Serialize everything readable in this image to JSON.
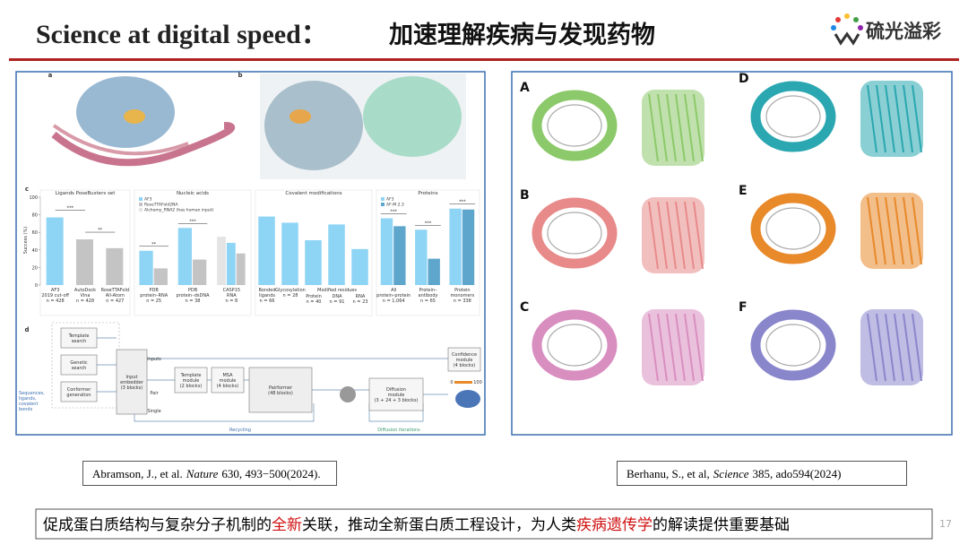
{
  "header": {
    "title_en": "Science at digital speed：",
    "title_zh": "加速理解疾病与发现药物",
    "logo": "硫光溢彩"
  },
  "left_figure": {
    "panels": [
      "a",
      "b",
      "c",
      "d"
    ],
    "chart_data": {
      "type": "bar",
      "ylabel": "Success (%)",
      "ylim": [
        0,
        100
      ],
      "yticks": [
        0,
        20,
        40,
        60,
        80,
        100
      ],
      "groups": [
        {
          "title": "Ligands PoseBusters set",
          "sig": [
            "***",
            "**"
          ],
          "clusters": [
            {
              "label": [
                "AF3",
                "2019 cut-off",
                "n = 428"
              ],
              "values": [
                77
              ],
              "colors": [
                "#8ed4f5"
              ]
            },
            {
              "label": [
                "AutoDock",
                "Vina",
                "n = 428"
              ],
              "values": [
                52
              ],
              "colors": [
                "#c4c4c4"
              ]
            },
            {
              "label": [
                "RoseTTAFold",
                "All-Atom",
                "n = 427"
              ],
              "values": [
                42
              ],
              "colors": [
                "#c4c4c4"
              ]
            }
          ]
        },
        {
          "title": "Nucleic acids",
          "legend": [
            {
              "name": "AF3",
              "color": "#8ed4f5"
            },
            {
              "name": "RoseTTAFold2NA",
              "color": "#c4c4c4"
            },
            {
              "name": "Alchemy_RNA2 (has human input)",
              "color": "#e4e4e4"
            }
          ],
          "clusters": [
            {
              "label": [
                "PDB",
                "protein–RNA",
                "n = 25"
              ],
              "values": [
                39,
                19
              ],
              "colors": [
                "#8ed4f5",
                "#c4c4c4"
              ],
              "sig": "**"
            },
            {
              "label": [
                "PDB",
                "protein–dsDNA",
                "n = 38"
              ],
              "values": [
                65,
                29
              ],
              "colors": [
                "#8ed4f5",
                "#c4c4c4"
              ],
              "sig": "***"
            },
            {
              "label": [
                "CASP15",
                "RNA",
                "n = 8"
              ],
              "values": [
                55,
                48,
                36
              ],
              "colors": [
                "#e4e4e4",
                "#8ed4f5",
                "#c4c4c4"
              ]
            }
          ]
        },
        {
          "title": "Covalent modifications",
          "caption": "Modified residues",
          "clusters": [
            {
              "label": [
                "Bonded",
                "ligands",
                "n = 66"
              ],
              "values": [
                78
              ],
              "colors": [
                "#8ed4f5"
              ]
            },
            {
              "label": [
                "Glycosylation",
                "n = 28"
              ],
              "values": [
                71
              ],
              "colors": [
                "#8ed4f5"
              ]
            },
            {
              "label": [
                "Protein",
                "n = 40"
              ],
              "values": [
                51
              ],
              "colors": [
                "#8ed4f5"
              ]
            },
            {
              "label": [
                "DNA",
                "n = 91"
              ],
              "values": [
                69
              ],
              "colors": [
                "#8ed4f5"
              ]
            },
            {
              "label": [
                "RNA",
                "n = 23"
              ],
              "values": [
                41
              ],
              "colors": [
                "#8ed4f5"
              ]
            }
          ]
        },
        {
          "title": "Proteins",
          "legend": [
            {
              "name": "AF3",
              "color": "#8ed4f5"
            },
            {
              "name": "AF-M 2.3",
              "color": "#5fa6cc"
            }
          ],
          "clusters": [
            {
              "label": [
                "All",
                "protein–protein",
                "n = 1,064"
              ],
              "values": [
                76,
                67
              ],
              "colors": [
                "#8ed4f5",
                "#5fa6cc"
              ],
              "sig": "***"
            },
            {
              "label": [
                "Protein–",
                "antibody",
                "n = 65"
              ],
              "values": [
                63,
                30
              ],
              "colors": [
                "#8ed4f5",
                "#5fa6cc"
              ],
              "sig": "***"
            },
            {
              "label": [
                "Protein",
                "monomers",
                "n = 338"
              ],
              "values": [
                87,
                86
              ],
              "colors": [
                "#8ed4f5",
                "#5fa6cc"
              ],
              "sig": "***"
            }
          ]
        }
      ]
    },
    "diagram": {
      "boxes": [
        [
          "Template",
          "search"
        ],
        [
          "Genetic",
          "search"
        ],
        [
          "Conformer",
          "generation"
        ],
        [
          "Input",
          "embedder",
          "(3 blocks)"
        ],
        [
          "Template",
          "module",
          "(2 blocks)"
        ],
        [
          "MSA",
          "module",
          "(4 blocks)"
        ],
        [
          "Pairformer",
          "(48 blocks)"
        ],
        [
          "Diffusion",
          "module",
          "(3 + 24 + 3 blocks)"
        ],
        [
          "Confidence",
          "module",
          "(4 blocks)"
        ]
      ],
      "inputs": [
        "Sequences,",
        "ligands,",
        "covalent",
        "bonds"
      ],
      "labels": [
        "Inputs",
        "Pair",
        "Single",
        "Recycling",
        "Diffusion iterations"
      ],
      "scale": [
        "0",
        "100"
      ]
    }
  },
  "right_figure": {
    "panels": [
      "A",
      "B",
      "C",
      "D",
      "E",
      "F"
    ]
  },
  "citations": [
    {
      "authors": "Abramson, J., et al.",
      "journal": "Nature",
      "details": "630, 493−500(2024)."
    },
    {
      "authors": "Berhanu, S., et al,",
      "journal": "Science",
      "details": "385, ado594(2024)"
    }
  ],
  "footer": {
    "segments": [
      {
        "text": "促成蛋白质结构与复杂分子机制的",
        "highlight": false
      },
      {
        "text": "全新",
        "highlight": true
      },
      {
        "text": "关联，推动全新蛋白质工程设计，为人类",
        "highlight": false
      },
      {
        "text": "疾病遗传学",
        "highlight": true
      },
      {
        "text": "的解读提供重要基础",
        "highlight": false
      }
    ],
    "page": "17"
  }
}
